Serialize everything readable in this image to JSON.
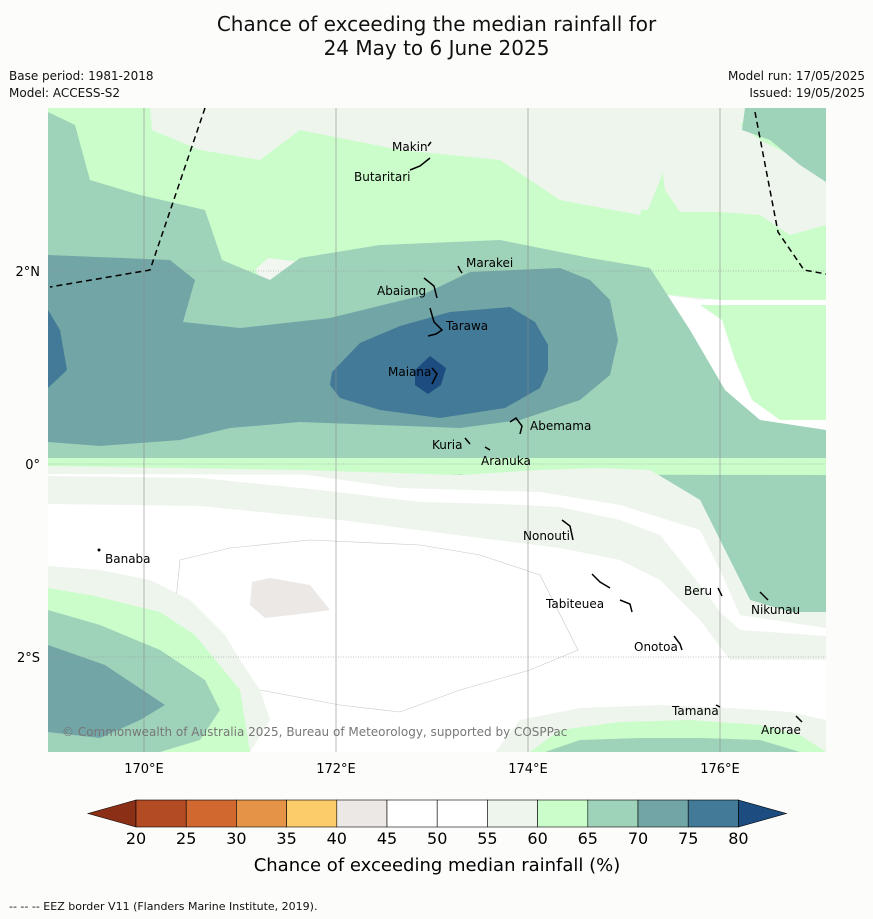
{
  "title_line1": "Chance of exceeding the median rainfall for",
  "title_line2": "24 May to 6 June 2025",
  "base_period": "Base period: 1981-2018",
  "model": "Model: ACCESS-S2",
  "model_run": "Model run: 17/05/2025",
  "issued": "Issued: 19/05/2025",
  "copyright": "© Commonwealth of Australia 2025, Bureau of Meteorology, supported by COSPPac",
  "lon_labels": [
    "170°E",
    "172°E",
    "174°E",
    "176°E"
  ],
  "lat_labels": [
    "2°N",
    "0°",
    "2°S"
  ],
  "places": [
    {
      "name": "Makin"
    },
    {
      "name": "Butaritari"
    },
    {
      "name": "Marakei"
    },
    {
      "name": "Abaiang"
    },
    {
      "name": "Tarawa"
    },
    {
      "name": "Maiana"
    },
    {
      "name": "Abemama"
    },
    {
      "name": "Kuria"
    },
    {
      "name": "Aranuka"
    },
    {
      "name": "Nonouti"
    },
    {
      "name": "Banaba"
    },
    {
      "name": "Beru"
    },
    {
      "name": "Nikunau"
    },
    {
      "name": "Tabiteuea"
    },
    {
      "name": "Onotoa"
    },
    {
      "name": "Tamana"
    },
    {
      "name": "Arorae"
    }
  ],
  "colorbar": {
    "title": "Chance of exceeding median rainfall (%)",
    "ticks": [
      "20",
      "25",
      "30",
      "35",
      "40",
      "45",
      "50",
      "55",
      "60",
      "65",
      "70",
      "75",
      "80"
    ],
    "colors": [
      "#b34b24",
      "#d0682f",
      "#e59447",
      "#fccb6a",
      "#ece8e6",
      "#ffffff",
      "#ffffff",
      "#edf5ec",
      "#cbfdcb",
      "#9ed2b9",
      "#72a5a6",
      "#437a97"
    ],
    "under_color": "#8c2f17",
    "over_color": "#1c4c80"
  },
  "footer": "--  --  -- EEZ border V11 (Flanders Marine Institute, 2019)."
}
